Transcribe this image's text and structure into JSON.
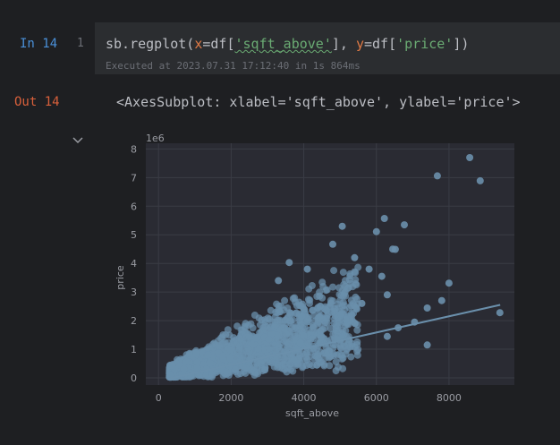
{
  "cell": {
    "in_label": "In 14",
    "line_number": "1",
    "code": {
      "fn": "sb.regplot(",
      "x_param": "x",
      "x_eq": "=df[",
      "x_str": "'sqft_above'",
      "sep": "], ",
      "y_param": "y",
      "y_eq": "=df[",
      "y_str": "'price'",
      "end": "])"
    },
    "executed": "Executed at 2023.07.31 17:12:40 in 1s 864ms",
    "out_label": "Out 14",
    "out_text": "<AxesSubplot: xlabel='sqft_above', ylabel='price'>"
  },
  "colors": {
    "plot_bg": "#2a2b33",
    "grid": "#3a3c45",
    "point": "#6a8fab",
    "line": "#6a8fab",
    "tick": "#9a9ca3"
  },
  "chart_data": {
    "type": "scatter",
    "xlabel": "sqft_above",
    "ylabel": "price",
    "offset_label": "1e6",
    "xlim": [
      -350,
      9800
    ],
    "ylim": [
      -0.25,
      8.2
    ],
    "x_ticks": [
      0,
      2000,
      4000,
      6000,
      8000
    ],
    "y_ticks": [
      0,
      1,
      2,
      3,
      4,
      5,
      6,
      7,
      8
    ],
    "grid": true,
    "legend": "none",
    "regression": {
      "x": [
        290,
        9410
      ],
      "y": [
        -0.03,
        2.55
      ]
    },
    "outliers": [
      {
        "x": 8570,
        "y": 7.7
      },
      {
        "x": 7680,
        "y": 7.06
      },
      {
        "x": 8860,
        "y": 6.89
      },
      {
        "x": 6770,
        "y": 5.35
      },
      {
        "x": 6220,
        "y": 5.57
      },
      {
        "x": 5060,
        "y": 5.3
      },
      {
        "x": 6450,
        "y": 4.5
      },
      {
        "x": 6520,
        "y": 4.49
      },
      {
        "x": 6000,
        "y": 5.11
      },
      {
        "x": 4800,
        "y": 4.67
      },
      {
        "x": 5400,
        "y": 4.2
      },
      {
        "x": 5800,
        "y": 3.8
      },
      {
        "x": 6150,
        "y": 3.55
      },
      {
        "x": 8000,
        "y": 3.31
      },
      {
        "x": 7800,
        "y": 2.7
      },
      {
        "x": 7400,
        "y": 2.44
      },
      {
        "x": 9400,
        "y": 2.28
      },
      {
        "x": 7400,
        "y": 1.15
      },
      {
        "x": 7050,
        "y": 1.95
      },
      {
        "x": 6600,
        "y": 1.75
      },
      {
        "x": 6300,
        "y": 1.45
      },
      {
        "x": 3600,
        "y": 4.03
      },
      {
        "x": 4100,
        "y": 3.8
      },
      {
        "x": 3300,
        "y": 3.4
      },
      {
        "x": 6300,
        "y": 2.9
      },
      {
        "x": 5600,
        "y": 2.6
      }
    ]
  }
}
